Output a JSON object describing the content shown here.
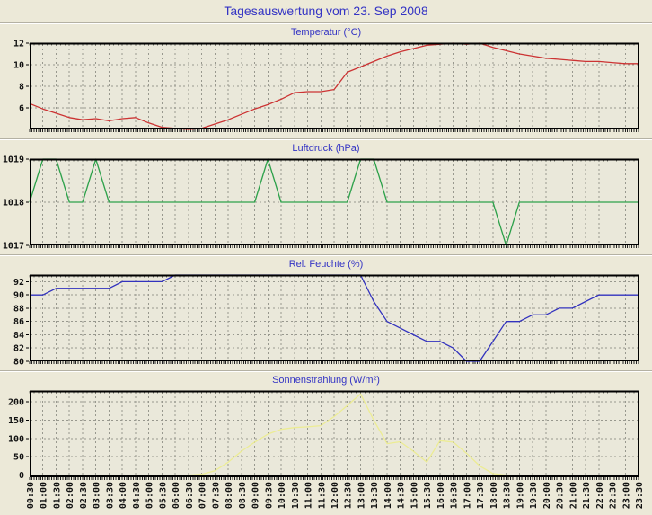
{
  "page": {
    "title": "Tagesauswertung vom 23. Sep 2008",
    "title_color": "#3434c4",
    "background": "#ece9d8",
    "plot_background": "#eae8da",
    "grid_color": "#98988e",
    "axis_color": "#000000"
  },
  "x_axis": {
    "labels": [
      "00:30",
      "01:00",
      "01:30",
      "02:00",
      "02:30",
      "03:00",
      "03:30",
      "04:00",
      "04:30",
      "05:00",
      "05:30",
      "06:00",
      "06:30",
      "07:00",
      "07:30",
      "08:00",
      "08:30",
      "09:00",
      "09:30",
      "10:00",
      "10:30",
      "11:00",
      "11:30",
      "12:00",
      "12:30",
      "13:00",
      "13:30",
      "14:00",
      "14:30",
      "15:00",
      "15:30",
      "16:00",
      "16:30",
      "17:00",
      "17:30",
      "18:00",
      "18:30",
      "19:00",
      "19:30",
      "20:00",
      "20:30",
      "21:00",
      "21:30",
      "22:00",
      "22:30",
      "23:00",
      "23:30"
    ]
  },
  "chart_data": [
    {
      "type": "line",
      "title": "Temperatur (°C)",
      "color": "#cc3333",
      "ylim": [
        4,
        12
      ],
      "yticks": [
        12,
        10,
        8,
        6
      ],
      "values": [
        6.4,
        5.9,
        5.5,
        5.1,
        4.9,
        5.0,
        4.8,
        5.0,
        5.1,
        4.6,
        4.2,
        4.1,
        4.0,
        4.1,
        4.5,
        4.9,
        5.4,
        5.9,
        6.3,
        6.8,
        7.4,
        7.5,
        7.5,
        7.7,
        9.3,
        9.8,
        10.3,
        10.8,
        11.2,
        11.5,
        11.8,
        11.9,
        12.0,
        11.9,
        12.0,
        11.6,
        11.3,
        11.0,
        10.8,
        10.6,
        10.5,
        10.4,
        10.3,
        10.3,
        10.2,
        10.1,
        10.1
      ]
    },
    {
      "type": "line",
      "title": "Luftdruck (hPa)",
      "color": "#2da14a",
      "ylim": [
        1017,
        1019
      ],
      "yticks": [
        1019,
        1018,
        1017
      ],
      "values": [
        1018,
        1019,
        1019,
        1018,
        1018,
        1019,
        1018,
        1018,
        1018,
        1018,
        1018,
        1018,
        1018,
        1018,
        1018,
        1018,
        1018,
        1018,
        1019,
        1018,
        1018,
        1018,
        1018,
        1018,
        1018,
        1019,
        1019,
        1018,
        1018,
        1018,
        1018,
        1018,
        1018,
        1018,
        1018,
        1018,
        1017,
        1018,
        1018,
        1018,
        1018,
        1018,
        1018,
        1018,
        1018,
        1018,
        1018
      ]
    },
    {
      "type": "line",
      "title": "Rel. Feuchte (%)",
      "color": "#3232be",
      "ylim": [
        80,
        93
      ],
      "yticks": [
        92,
        90,
        88,
        86,
        84,
        82,
        80
      ],
      "values": [
        90,
        90,
        91,
        91,
        91,
        91,
        91,
        92,
        92,
        92,
        92,
        93,
        93,
        93,
        93,
        93,
        93,
        93,
        93,
        93,
        93,
        93,
        93,
        93,
        93,
        93,
        89,
        86,
        85,
        84,
        83,
        83,
        82,
        80,
        80,
        83,
        86,
        86,
        87,
        87,
        88,
        88,
        89,
        90,
        90,
        90,
        90
      ]
    },
    {
      "type": "line",
      "title": "Sonnenstrahlung (W/m²)",
      "color": "#ecec94",
      "ylim": [
        -6,
        230
      ],
      "yticks": [
        200,
        150,
        100,
        50,
        0
      ],
      "values": [
        0,
        0,
        0,
        0,
        0,
        0,
        0,
        0,
        0,
        0,
        0,
        0,
        0,
        2,
        12,
        35,
        65,
        90,
        112,
        125,
        130,
        132,
        135,
        160,
        190,
        222,
        150,
        86,
        91,
        65,
        35,
        94,
        90,
        60,
        25,
        4,
        0,
        0,
        0,
        0,
        0,
        0,
        0,
        0,
        0,
        0,
        0
      ]
    }
  ]
}
